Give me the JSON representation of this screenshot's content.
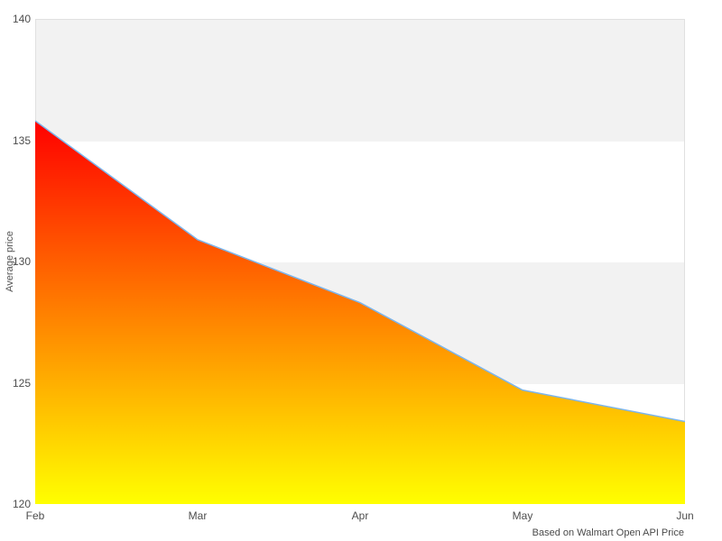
{
  "chart": {
    "y_axis_title": "Average price",
    "credits": "Based on Walmart Open API Price"
  },
  "chart_data": {
    "type": "area",
    "categories": [
      "Feb",
      "Mar",
      "Apr",
      "May",
      "Jun"
    ],
    "values": [
      135.8,
      130.9,
      128.3,
      124.7,
      123.4
    ],
    "title": "",
    "xlabel": "",
    "ylabel": "Average price",
    "caption": "Based on Walmart Open API Price",
    "ylim": [
      120,
      140
    ],
    "y_ticks": [
      140,
      135,
      130,
      125,
      120
    ],
    "grid": false,
    "legend_position": "none",
    "alternating_band_color": "#f2f2f2",
    "plot_border_color": "#e0e0e0",
    "line_color": "#7cb5ec",
    "fill_gradient": [
      "#ff0000",
      "#ff8000",
      "#ffff00"
    ],
    "label_color": "#4d4d4d"
  }
}
